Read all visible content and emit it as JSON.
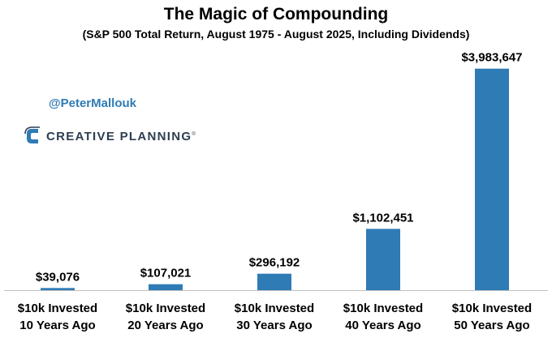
{
  "header": {
    "title": "The Magic of Compounding",
    "subtitle": "(S&P 500 Total Return, August 1975 - August 2025, Including Dividends)"
  },
  "watermark": {
    "handle": "@PeterMallouk",
    "brand_name": "CREATIVE PLANNING",
    "brand_mark": "®",
    "logo_icon": "creative-planning-logo-icon"
  },
  "colors": {
    "bar": "#2e7bb5",
    "handle_text": "#2e7bb5",
    "brand_text": "#2c3e50",
    "axis": "#c0c0c0"
  },
  "chart_data": {
    "type": "bar",
    "categories": [
      [
        "$10k Invested",
        "10 Years Ago"
      ],
      [
        "$10k Invested",
        "20 Years Ago"
      ],
      [
        "$10k Invested",
        "30 Years Ago"
      ],
      [
        "$10k Invested",
        "40 Years Ago"
      ],
      [
        "$10k Invested",
        "50 Years Ago"
      ]
    ],
    "values": [
      39076,
      107021,
      296192,
      1102451,
      3983647
    ],
    "data_labels": [
      "$39,076",
      "$107,021",
      "$296,192",
      "$1,102,451",
      "$3,983,647"
    ],
    "title": "The Magic of Compounding",
    "subtitle": "(S&P 500 Total Return, August 1975 - August 2025, Including Dividends)",
    "xlabel": "",
    "ylabel": "",
    "ylim": [
      0,
      4300000
    ],
    "grid": false,
    "legend": "none"
  }
}
